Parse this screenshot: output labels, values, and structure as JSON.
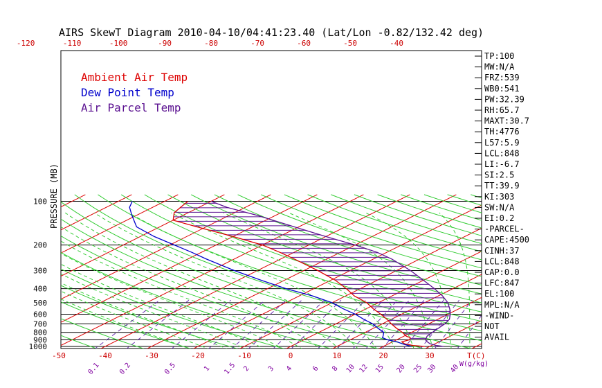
{
  "chart_data": {
    "type": "skewt",
    "title": "AIRS SkewT Diagram 2010-04-10/04:41:23.40 (Lat/Lon -0.82/132.42 deg)",
    "ylabel": "PRESSURE (MB)",
    "xlabel_bottom": "T(C)",
    "mixing_ratio_unit": "W(g/kg)",
    "pressure_ticks": [
      "100",
      "200",
      "300",
      "400",
      "500",
      "600",
      "700",
      "800",
      "900",
      "1000"
    ],
    "pressure_tick_values": [
      100,
      200,
      300,
      400,
      500,
      600,
      700,
      800,
      900,
      1000
    ],
    "top_temp_ticks": [
      "-120",
      "-110",
      "-100",
      "-90",
      "-80",
      "-70",
      "-60",
      "-50",
      "-40"
    ],
    "top_temp_values": [
      -120,
      -110,
      -100,
      -90,
      -80,
      -70,
      -60,
      -50,
      -40
    ],
    "bottom_temp_ticks": [
      "-50",
      "-40",
      "-30",
      "-20",
      "-10",
      "0",
      "10",
      "20",
      "30"
    ],
    "bottom_temp_values": [
      -50,
      -40,
      -30,
      -20,
      -10,
      0,
      10,
      20,
      30
    ],
    "mixing_ratio_labels": [
      "0.1",
      "0.2",
      "0.5",
      "1",
      "1.5",
      "2",
      "3",
      "4",
      "6",
      "8",
      "10",
      "12",
      "15",
      "20",
      "25",
      "30",
      "40"
    ],
    "mixing_ratio_values": [
      0.1,
      0.2,
      0.5,
      1,
      1.5,
      2,
      3,
      4,
      6,
      8,
      10,
      12,
      15,
      20,
      25,
      30,
      40
    ],
    "legend": [
      "Ambient Air Temp",
      "Dew Point Temp",
      "Air Parcel Temp"
    ],
    "legend_colors": [
      "#dd0000",
      "#0000cc",
      "#5a1090"
    ],
    "series": [
      {
        "name": "Ambient Air Temp",
        "color": "#dd0000",
        "p": [
          1000,
          985,
          960,
          930,
          900,
          870,
          850,
          800,
          750,
          700,
          650,
          600,
          550,
          500,
          450,
          400,
          350,
          300,
          250,
          225,
          200,
          175,
          150,
          135,
          120,
          110,
          100
        ],
        "t": [
          29,
          26,
          23.5,
          22,
          22.8,
          22,
          20.5,
          18,
          15,
          12,
          9,
          5.5,
          1.5,
          -2.5,
          -8,
          -13,
          -19,
          -27,
          -37,
          -43,
          -50,
          -60,
          -72,
          -80,
          -83,
          -84,
          -85
        ]
      },
      {
        "name": "Dew Point Temp",
        "color": "#0000cc",
        "p": [
          1000,
          960,
          930,
          900,
          870,
          850,
          800,
          750,
          700,
          650,
          600,
          550,
          500,
          450,
          400,
          350,
          300,
          250,
          225,
          200,
          175,
          150,
          125,
          110,
          100
        ],
        "t": [
          26,
          23,
          21,
          18,
          16,
          15.5,
          14,
          11,
          8,
          4,
          0,
          -5,
          -10,
          -17,
          -26,
          -35,
          -45,
          -56,
          -62,
          -69,
          -77,
          -85,
          -91,
          -95,
          -97
        ]
      },
      {
        "name": "Air Parcel Temp",
        "color": "#5a1090",
        "p": [
          1000,
          985,
          960,
          930,
          900,
          870,
          850,
          800,
          750,
          700,
          650,
          600,
          550,
          500,
          450,
          400,
          350,
          300,
          250,
          225,
          200,
          175,
          150,
          125,
          110,
          100
        ],
        "t": [
          33,
          31,
          29,
          27.5,
          26.2,
          25.5,
          25,
          24.5,
          24,
          23.5,
          22.5,
          20.5,
          18,
          15,
          11,
          6,
          0,
          -7,
          -16,
          -22,
          -30,
          -40,
          -51,
          -64,
          -74,
          -80
        ]
      }
    ],
    "indices": [
      "TP:100",
      "MW:N/A",
      "FRZ:539",
      "WB0:541",
      "PW:32.39",
      "RH:65.7",
      "MAXT:30.7",
      "TH:4776",
      "L57:5.9",
      "LCL:848",
      "LI:-6.7",
      "SI:2.5",
      "TT:39.9",
      "KI:303",
      "SW:N/A",
      "EI:0.2",
      "-PARCEL-",
      "CAPE:4500",
      "CINH:37",
      "LCL:848",
      "CAP:0.0",
      "LFC:847",
      "EL:100",
      "MPL:N/A",
      "-WIND-",
      "NOT",
      "AVAIL"
    ],
    "ylim": [
      1000,
      100
    ],
    "grid": true,
    "legend_position": "top-left"
  }
}
